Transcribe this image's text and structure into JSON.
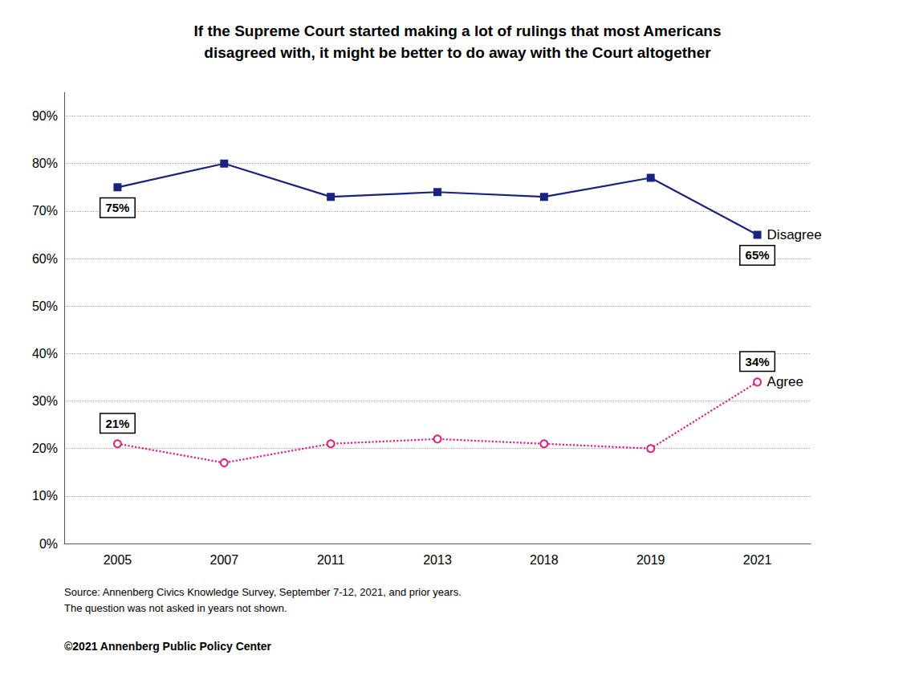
{
  "chart_data": {
    "type": "line",
    "title": "If the Supreme Court started making a lot of rulings that most Americans\ndisagreed with, it might be better to do away with the Court altogether",
    "categories": [
      "2005",
      "2007",
      "2011",
      "2013",
      "2018",
      "2019",
      "2021"
    ],
    "series": [
      {
        "name": "Disagree",
        "color": "#1a237e",
        "marker": "square",
        "line_style": "solid",
        "values": [
          0.75,
          0.8,
          0.73,
          0.74,
          0.73,
          0.77,
          0.65
        ]
      },
      {
        "name": "Agree",
        "color": "#e8197d",
        "marker": "circle",
        "line_style": "dotted",
        "values": [
          0.21,
          0.17,
          0.21,
          0.22,
          0.21,
          0.2,
          0.34
        ]
      }
    ],
    "ylim": [
      0,
      0.95
    ],
    "yticks": [
      {
        "value": 0.0,
        "label": "0%"
      },
      {
        "value": 0.1,
        "label": "10%"
      },
      {
        "value": 0.2,
        "label": "20%"
      },
      {
        "value": 0.3,
        "label": "30%"
      },
      {
        "value": 0.4,
        "label": "40%"
      },
      {
        "value": 0.5,
        "label": "50%"
      },
      {
        "value": 0.6,
        "label": "60%"
      },
      {
        "value": 0.7,
        "label": "70%"
      },
      {
        "value": 0.8,
        "label": "80%"
      },
      {
        "value": 0.9,
        "label": "90%"
      }
    ],
    "grid": true,
    "annotations": [
      {
        "series": "Disagree",
        "x": "2005",
        "y": 0.75,
        "text": "75%"
      },
      {
        "series": "Disagree",
        "x": "2021",
        "y": 0.65,
        "text": "65%"
      },
      {
        "series": "Agree",
        "x": "2005",
        "y": 0.21,
        "text": "21%"
      },
      {
        "series": "Agree",
        "x": "2021",
        "y": 0.34,
        "text": "34%"
      }
    ],
    "source": "Source: Annenberg Civics Knowledge Survey, September 7-12, 2021, and prior years.\nThe question was not asked in years not shown.",
    "copyright": "©2021 Annenberg Public Policy Center"
  }
}
